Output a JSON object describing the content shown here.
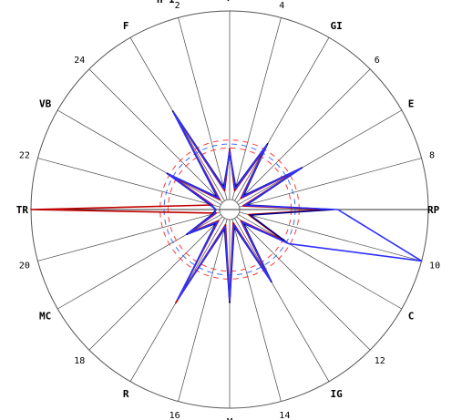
{
  "chart_data": {
    "type": "radar",
    "spokes": [
      "P",
      "4",
      "GI",
      "6",
      "E",
      "8",
      "RP",
      "10",
      "C",
      "12",
      "IG",
      "14",
      "V",
      "16",
      "R",
      "18",
      "MC",
      "20",
      "TR",
      "22",
      "VB",
      "24",
      "F",
      "2"
    ],
    "bold_spokes": [
      "P",
      "GI",
      "E",
      "RP",
      "C",
      "IG",
      "V",
      "R",
      "MC",
      "TR",
      "VB",
      "F"
    ],
    "r_range": [
      0,
      1
    ],
    "grid": "radial spokes",
    "reference_circles": [
      {
        "r": 0.31,
        "color": "#ff3b3b"
      },
      {
        "r": 0.33,
        "color": "#3a6bff"
      },
      {
        "r": 0.35,
        "color": "#ff3b3b"
      }
    ],
    "series": [
      {
        "color": "#c00000",
        "values": [
          0.27,
          0.05,
          0.32,
          0.03,
          0.37,
          0.02,
          0.47,
          0.05,
          0.28,
          0.03,
          0.37,
          0.02,
          0.44,
          0.03,
          0.52,
          0.03,
          0.19,
          0.02,
          1.0,
          0.04,
          0.3,
          0.02,
          0.53,
          0.05
        ]
      },
      {
        "color": "#000088",
        "values": [
          0.25,
          0.07,
          0.35,
          0.05,
          0.39,
          0.04,
          0.5,
          0.06,
          0.3,
          0.05,
          0.39,
          0.04,
          0.44,
          0.05,
          0.49,
          0.05,
          0.21,
          0.04,
          0.02,
          0.06,
          0.33,
          0.04,
          0.55,
          0.07
        ]
      },
      {
        "color": "#3030ff",
        "values": [
          0.26,
          0.06,
          0.34,
          0.04,
          0.38,
          0.03,
          0.52,
          1.0,
          0.31,
          0.04,
          0.38,
          0.03,
          0.43,
          0.04,
          0.5,
          0.04,
          0.2,
          0.03,
          0.02,
          0.05,
          0.32,
          0.03,
          0.54,
          0.06
        ]
      }
    ],
    "clipped_top_text": "H  I"
  }
}
